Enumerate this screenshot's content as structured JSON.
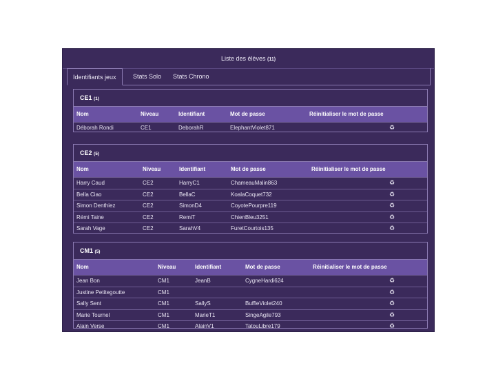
{
  "header": {
    "title": "Liste des élèves",
    "count": "(11)"
  },
  "tabs": [
    {
      "label": "Identifiants jeux",
      "active": true
    },
    {
      "label": "Stats Solo",
      "active": false
    },
    {
      "label": "Stats Chrono",
      "active": false
    }
  ],
  "columns": {
    "name": "Nom",
    "level": "Niveau",
    "login": "Identifiant",
    "password": "Mot de passe",
    "reset": "Réinitialiser le mot de passe"
  },
  "reset_icon": "recycle-icon",
  "groups": [
    {
      "title": "CE1",
      "count": "(1)",
      "students": [
        {
          "name": "Déborah Rondi",
          "level": "CE1",
          "login": "DeborahR",
          "password": "ElephantViolet871"
        }
      ]
    },
    {
      "title": "CE2",
      "count": "(5)",
      "students": [
        {
          "name": "Harry Caud",
          "level": "CE2",
          "login": "HarryC1",
          "password": "ChameauMalin863"
        },
        {
          "name": "Bella Ciao",
          "level": "CE2",
          "login": "BellaC",
          "password": "KoalaCoquet732"
        },
        {
          "name": "Simon Denthiez",
          "level": "CE2",
          "login": "SimonD4",
          "password": "CoyotePourpre119"
        },
        {
          "name": "Rémi Taine",
          "level": "CE2",
          "login": "RemiT",
          "password": "ChienBleu3251"
        },
        {
          "name": "Sarah Vage",
          "level": "CE2",
          "login": "SarahV4",
          "password": "FuretCourtois135"
        }
      ]
    },
    {
      "title": "CM1",
      "count": "(5)",
      "students": [
        {
          "name": "Jean Bon",
          "level": "CM1",
          "login": "JeanB",
          "password": "CygneHardi624"
        },
        {
          "name": "Justine Petitegoutte",
          "level": "CM1",
          "login": "",
          "password": ""
        },
        {
          "name": "Sally Sent",
          "level": "CM1",
          "login": "SallyS",
          "password": "BuffleViolet240"
        },
        {
          "name": "Marie Tournel",
          "level": "CM1",
          "login": "MarieT1",
          "password": "SingeAgile793"
        },
        {
          "name": "Alain Verse",
          "level": "CM1",
          "login": "AlainV1",
          "password": "TatouLibre179"
        }
      ]
    }
  ]
}
